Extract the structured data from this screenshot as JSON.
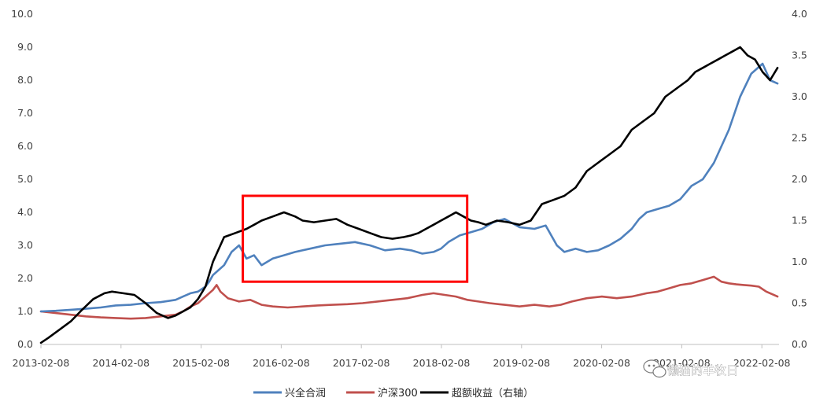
{
  "chart_data": {
    "type": "line",
    "title": "",
    "xlabel": "",
    "ylabel": "",
    "y_left": {
      "ylim": [
        0,
        10
      ],
      "ticks": [
        "0.0",
        "1.0",
        "2.0",
        "3.0",
        "4.0",
        "5.0",
        "6.0",
        "7.0",
        "8.0",
        "9.0",
        "10.0"
      ]
    },
    "y_right": {
      "ylim": [
        0,
        4
      ],
      "ticks": [
        "0.0",
        "0.5",
        "1.0",
        "1.5",
        "2.0",
        "2.5",
        "3.0",
        "3.5",
        "4.0"
      ]
    },
    "x_ticks": [
      "2013-02-08",
      "2014-02-08",
      "2015-02-08",
      "2016-02-08",
      "2017-02-08",
      "2018-02-08",
      "2019-02-08",
      "2020-02-08",
      "2021-02-08",
      "2022-02-08"
    ],
    "grid": false,
    "legend_position": "bottom",
    "highlight_box": {
      "x_start": 2015.8,
      "x_end": 2018.8,
      "y_bottom": 1.9,
      "y_top": 4.5,
      "color": "#ff0000"
    },
    "series": [
      {
        "name": "兴全合润",
        "axis": "left",
        "color": "#4f81bd",
        "x": [
          2013.1,
          2013.3,
          2013.5,
          2013.7,
          2013.9,
          2014.1,
          2014.3,
          2014.5,
          2014.7,
          2014.9,
          2015.0,
          2015.1,
          2015.2,
          2015.3,
          2015.35,
          2015.4,
          2015.45,
          2015.55,
          2015.65,
          2015.75,
          2015.85,
          2015.95,
          2016.05,
          2016.2,
          2016.35,
          2016.5,
          2016.7,
          2016.9,
          2017.1,
          2017.3,
          2017.5,
          2017.7,
          2017.9,
          2018.05,
          2018.2,
          2018.35,
          2018.45,
          2018.55,
          2018.7,
          2018.85,
          2019.0,
          2019.15,
          2019.3,
          2019.5,
          2019.7,
          2019.85,
          2020.0,
          2020.1,
          2020.25,
          2020.4,
          2020.55,
          2020.7,
          2020.85,
          2021.0,
          2021.1,
          2021.2,
          2021.35,
          2021.5,
          2021.65,
          2021.8,
          2021.95,
          2022.1,
          2022.2,
          2022.3,
          2022.45,
          2022.6,
          2022.75,
          2022.85,
          2022.95
        ],
        "y": [
          1.0,
          1.02,
          1.05,
          1.08,
          1.12,
          1.18,
          1.2,
          1.25,
          1.28,
          1.35,
          1.45,
          1.55,
          1.6,
          1.75,
          1.9,
          2.1,
          2.2,
          2.4,
          2.8,
          3.0,
          2.6,
          2.7,
          2.4,
          2.6,
          2.7,
          2.8,
          2.9,
          3.0,
          3.05,
          3.1,
          3.0,
          2.85,
          2.9,
          2.85,
          2.75,
          2.8,
          2.9,
          3.1,
          3.3,
          3.4,
          3.5,
          3.7,
          3.8,
          3.55,
          3.5,
          3.6,
          3.0,
          2.8,
          2.9,
          2.8,
          2.85,
          3.0,
          3.2,
          3.5,
          3.8,
          4.0,
          4.1,
          4.2,
          4.4,
          4.8,
          5.0,
          5.5,
          6.0,
          6.5,
          7.5,
          8.2,
          8.5,
          8.0,
          7.9
        ]
      },
      {
        "name": "沪深300",
        "axis": "left",
        "color": "#c0504d",
        "x": [
          2013.1,
          2013.3,
          2013.5,
          2013.7,
          2013.9,
          2014.1,
          2014.3,
          2014.5,
          2014.7,
          2014.9,
          2015.0,
          2015.1,
          2015.2,
          2015.3,
          2015.4,
          2015.45,
          2015.5,
          2015.6,
          2015.75,
          2015.9,
          2016.05,
          2016.2,
          2016.4,
          2016.6,
          2016.8,
          2017.0,
          2017.2,
          2017.4,
          2017.6,
          2017.8,
          2018.0,
          2018.1,
          2018.2,
          2018.35,
          2018.5,
          2018.65,
          2018.8,
          2018.95,
          2019.1,
          2019.3,
          2019.5,
          2019.7,
          2019.9,
          2020.05,
          2020.2,
          2020.4,
          2020.6,
          2020.8,
          2021.0,
          2021.1,
          2021.2,
          2021.35,
          2021.5,
          2021.65,
          2021.8,
          2021.95,
          2022.1,
          2022.2,
          2022.3,
          2022.4,
          2022.5,
          2022.6,
          2022.7,
          2022.8,
          2022.95
        ],
        "y": [
          1.0,
          0.95,
          0.9,
          0.85,
          0.82,
          0.8,
          0.78,
          0.8,
          0.85,
          0.9,
          1.0,
          1.15,
          1.25,
          1.45,
          1.65,
          1.8,
          1.6,
          1.4,
          1.3,
          1.35,
          1.2,
          1.15,
          1.12,
          1.15,
          1.18,
          1.2,
          1.22,
          1.25,
          1.3,
          1.35,
          1.4,
          1.45,
          1.5,
          1.55,
          1.5,
          1.45,
          1.35,
          1.3,
          1.25,
          1.2,
          1.15,
          1.2,
          1.15,
          1.2,
          1.3,
          1.4,
          1.45,
          1.4,
          1.45,
          1.5,
          1.55,
          1.6,
          1.7,
          1.8,
          1.85,
          1.95,
          2.05,
          1.9,
          1.85,
          1.82,
          1.8,
          1.78,
          1.75,
          1.6,
          1.45
        ]
      },
      {
        "name": "超额收益（右轴）",
        "axis": "right",
        "color": "#000000",
        "x": [
          2013.1,
          2013.2,
          2013.35,
          2013.5,
          2013.65,
          2013.8,
          2013.95,
          2014.05,
          2014.2,
          2014.35,
          2014.5,
          2014.65,
          2014.8,
          2014.9,
          2015.0,
          2015.1,
          2015.2,
          2015.3,
          2015.4,
          2015.55,
          2015.7,
          2015.85,
          2015.95,
          2016.05,
          2016.2,
          2016.35,
          2016.5,
          2016.6,
          2016.75,
          2016.9,
          2017.05,
          2017.2,
          2017.35,
          2017.5,
          2017.65,
          2017.8,
          2017.95,
          2018.05,
          2018.15,
          2018.25,
          2018.35,
          2018.45,
          2018.55,
          2018.65,
          2018.75,
          2018.85,
          2018.95,
          2019.05,
          2019.2,
          2019.35,
          2019.5,
          2019.65,
          2019.8,
          2019.95,
          2020.1,
          2020.25,
          2020.4,
          2020.55,
          2020.7,
          2020.85,
          2021.0,
          2021.15,
          2021.3,
          2021.45,
          2021.6,
          2021.75,
          2021.85,
          2021.95,
          2022.05,
          2022.15,
          2022.25,
          2022.35,
          2022.45,
          2022.55,
          2022.65,
          2022.75,
          2022.85,
          2022.95
        ],
        "y": [
          0.02,
          0.08,
          0.18,
          0.28,
          0.42,
          0.55,
          0.62,
          0.64,
          0.62,
          0.6,
          0.5,
          0.38,
          0.32,
          0.35,
          0.4,
          0.45,
          0.55,
          0.7,
          1.0,
          1.3,
          1.35,
          1.4,
          1.45,
          1.5,
          1.55,
          1.6,
          1.55,
          1.5,
          1.48,
          1.5,
          1.52,
          1.45,
          1.4,
          1.35,
          1.3,
          1.28,
          1.3,
          1.32,
          1.35,
          1.4,
          1.45,
          1.5,
          1.55,
          1.6,
          1.55,
          1.5,
          1.48,
          1.45,
          1.5,
          1.48,
          1.45,
          1.5,
          1.7,
          1.75,
          1.8,
          1.9,
          2.1,
          2.2,
          2.3,
          2.4,
          2.6,
          2.7,
          2.8,
          3.0,
          3.1,
          3.2,
          3.3,
          3.35,
          3.4,
          3.45,
          3.5,
          3.55,
          3.6,
          3.5,
          3.45,
          3.3,
          3.2,
          3.35
        ]
      }
    ]
  },
  "watermark": {
    "text": "懒猫的羊牧日",
    "icon": "wechat-icon"
  }
}
